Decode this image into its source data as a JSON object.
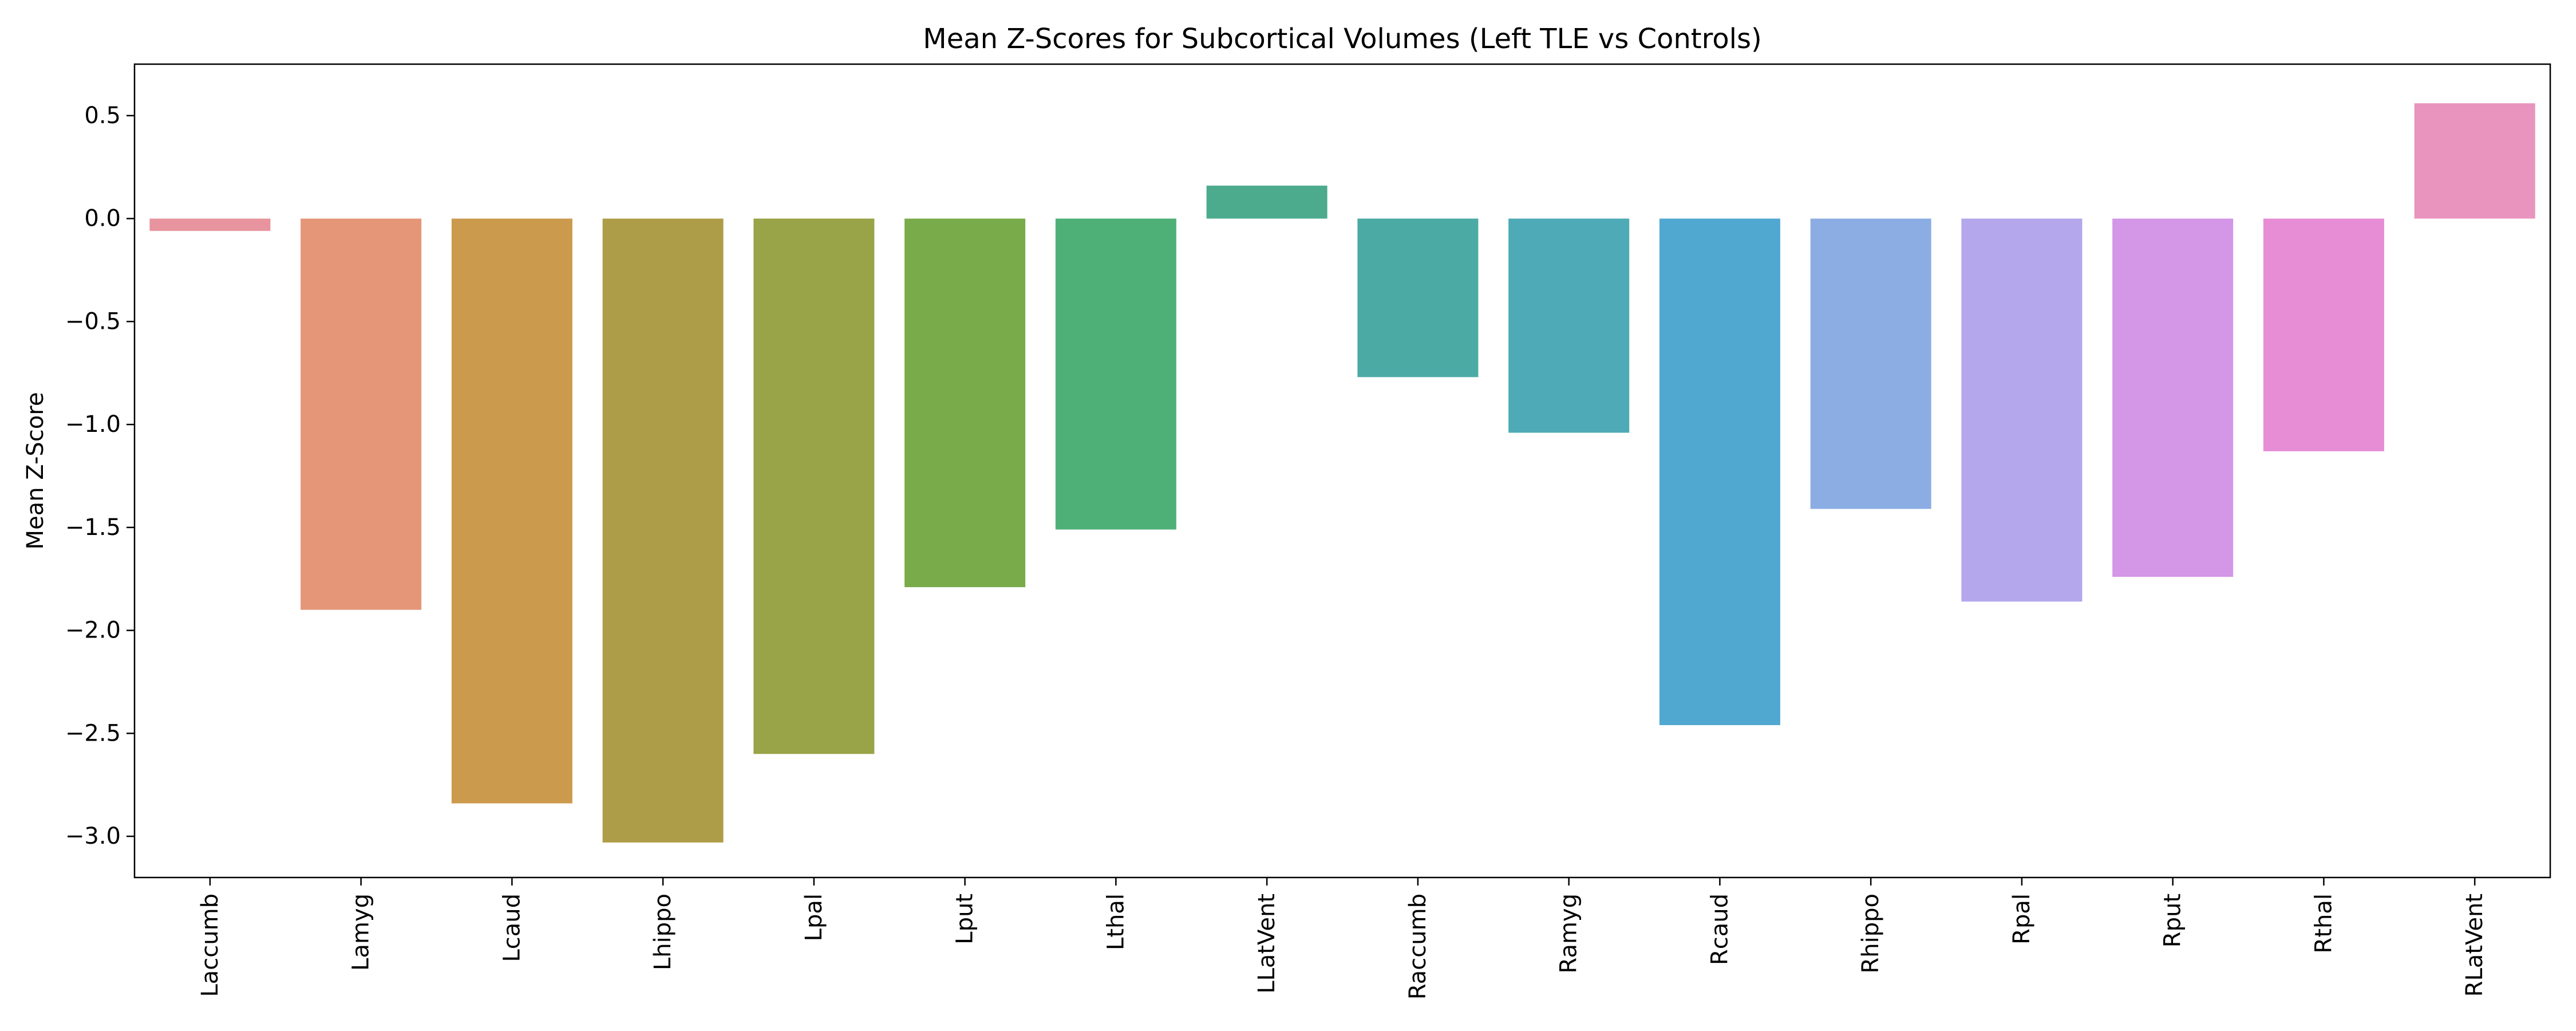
{
  "chart_data": {
    "type": "bar",
    "title": "Mean Z-Scores for Subcortical Volumes (Left TLE vs Controls)",
    "xlabel": "",
    "ylabel": "Mean Z-Score",
    "ylim": [
      -3.2,
      0.75
    ],
    "yticks": [
      0.5,
      0.0,
      -0.5,
      -1.0,
      -1.5,
      -2.0,
      -2.5,
      -3.0
    ],
    "ytick_labels": [
      "0.5",
      "0.0",
      "−0.5",
      "−1.0",
      "−1.5",
      "−2.0",
      "−2.5",
      "−3.0"
    ],
    "grid": false,
    "categories": [
      "Laccumb",
      "Lamyg",
      "Lcaud",
      "Lhippo",
      "Lpal",
      "Lput",
      "Lthal",
      "LLatVent",
      "Raccumb",
      "Ramyg",
      "Rcaud",
      "Rhippo",
      "Rpal",
      "Rput",
      "Rthal",
      "RLatVent"
    ],
    "values": [
      -0.06,
      -1.9,
      -2.84,
      -3.03,
      -2.6,
      -1.79,
      -1.51,
      0.16,
      -0.77,
      -1.04,
      -2.46,
      -1.41,
      -1.86,
      -1.74,
      -1.13,
      0.56
    ],
    "colors": [
      "#e8949e",
      "#e59679",
      "#cc9a4d",
      "#ae9d48",
      "#99a348",
      "#79ab4b",
      "#4fb077",
      "#4caa8d",
      "#4caaa5",
      "#4eaab6",
      "#50a8d1",
      "#8bade4",
      "#b4a7eb",
      "#d496e6",
      "#e68dd6",
      "#e994be"
    ]
  }
}
